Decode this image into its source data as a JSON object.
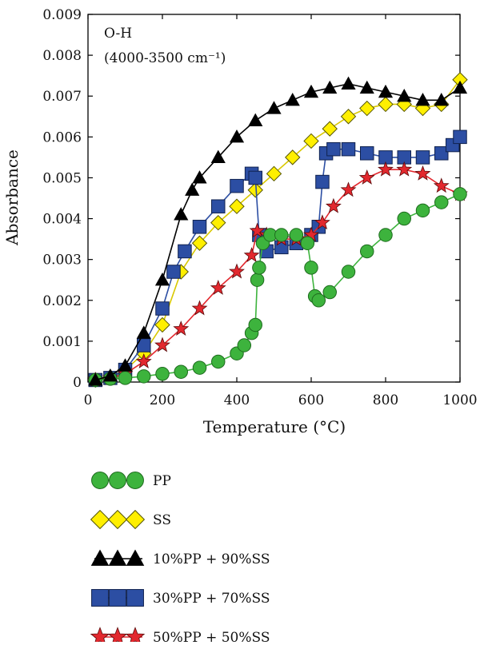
{
  "chart_data": {
    "type": "line",
    "title": "",
    "xlabel": "Temperature (°C)",
    "ylabel": "Absorbance",
    "xlim": [
      0,
      1000
    ],
    "ylim": [
      0,
      0.009
    ],
    "x_ticks": [
      "0",
      "200",
      "400",
      "600",
      "800",
      "1000"
    ],
    "y_ticks": [
      "0",
      "0.001",
      "0.002",
      "0.003",
      "0.004",
      "0.005",
      "0.006",
      "0.007",
      "0.008",
      "0.009"
    ],
    "annotation_lines": [
      "O-H",
      "(4000-3500 cm⁻¹)"
    ],
    "grid": false,
    "legend_position": "below",
    "series": [
      {
        "name": "PP",
        "marker": "circle",
        "color": "#3db33d",
        "x": [
          20,
          60,
          100,
          150,
          200,
          250,
          300,
          350,
          400,
          420,
          440,
          450,
          455,
          460,
          470,
          490,
          520,
          560,
          590,
          600,
          610,
          620,
          650,
          700,
          750,
          800,
          850,
          900,
          950,
          1000
        ],
        "y": [
          5e-05,
          8e-05,
          0.0001,
          0.00014,
          0.0002,
          0.00025,
          0.00035,
          0.0005,
          0.0007,
          0.0009,
          0.0012,
          0.0014,
          0.0025,
          0.0028,
          0.0034,
          0.0036,
          0.0036,
          0.0036,
          0.0034,
          0.0028,
          0.0021,
          0.002,
          0.0022,
          0.0027,
          0.0032,
          0.0036,
          0.004,
          0.0042,
          0.0044,
          0.0046
        ]
      },
      {
        "name": "SS",
        "marker": "diamond",
        "color": "#ffef00",
        "x": [
          20,
          60,
          100,
          150,
          200,
          250,
          300,
          350,
          400,
          450,
          500,
          550,
          600,
          650,
          700,
          750,
          800,
          850,
          900,
          950,
          1000
        ],
        "y": [
          5e-05,
          0.00012,
          0.0003,
          0.0007,
          0.0014,
          0.0027,
          0.0034,
          0.0039,
          0.0043,
          0.0047,
          0.0051,
          0.0055,
          0.0059,
          0.0062,
          0.0065,
          0.0067,
          0.0068,
          0.0068,
          0.0067,
          0.0068,
          0.0074
        ]
      },
      {
        "name": "10%PP + 90%SS",
        "marker": "triangle",
        "color": "#000000",
        "x": [
          20,
          60,
          100,
          150,
          200,
          250,
          280,
          300,
          350,
          400,
          450,
          500,
          550,
          600,
          650,
          700,
          750,
          800,
          850,
          900,
          950,
          1000
        ],
        "y": [
          5e-05,
          0.00015,
          0.0004,
          0.0012,
          0.0025,
          0.0041,
          0.0047,
          0.005,
          0.0055,
          0.006,
          0.0064,
          0.0067,
          0.0069,
          0.0071,
          0.0072,
          0.0073,
          0.0072,
          0.0071,
          0.007,
          0.0069,
          0.0069,
          0.0072
        ]
      },
      {
        "name": "30%PP + 70%SS",
        "marker": "square",
        "color": "#2c4ea3",
        "x": [
          20,
          60,
          100,
          150,
          200,
          230,
          260,
          300,
          350,
          400,
          440,
          450,
          460,
          480,
          520,
          560,
          600,
          620,
          630,
          640,
          660,
          700,
          750,
          800,
          850,
          900,
          950,
          980,
          1000
        ],
        "y": [
          5e-05,
          0.0001,
          0.0003,
          0.0009,
          0.0018,
          0.0027,
          0.0032,
          0.0038,
          0.0043,
          0.0048,
          0.0051,
          0.005,
          0.0036,
          0.0032,
          0.0033,
          0.0034,
          0.0036,
          0.0038,
          0.0049,
          0.0056,
          0.0057,
          0.0057,
          0.0056,
          0.0055,
          0.0055,
          0.0055,
          0.0056,
          0.0058,
          0.006
        ]
      },
      {
        "name": "50%PP + 50%SS",
        "marker": "star",
        "color": "#e2282e",
        "x": [
          20,
          60,
          100,
          150,
          200,
          250,
          300,
          350,
          400,
          440,
          455,
          480,
          520,
          560,
          600,
          630,
          660,
          700,
          750,
          800,
          850,
          900,
          950,
          1000
        ],
        "y": [
          5e-05,
          0.0001,
          0.0002,
          0.0005,
          0.0009,
          0.0013,
          0.0018,
          0.0023,
          0.0027,
          0.0031,
          0.0037,
          0.0036,
          0.0035,
          0.0035,
          0.0036,
          0.0039,
          0.0043,
          0.0047,
          0.005,
          0.0052,
          0.0052,
          0.0051,
          0.0048,
          0.0046
        ]
      }
    ]
  },
  "colors": {
    "marker_stroke": "#1a1a1a",
    "axis": "#000000"
  }
}
